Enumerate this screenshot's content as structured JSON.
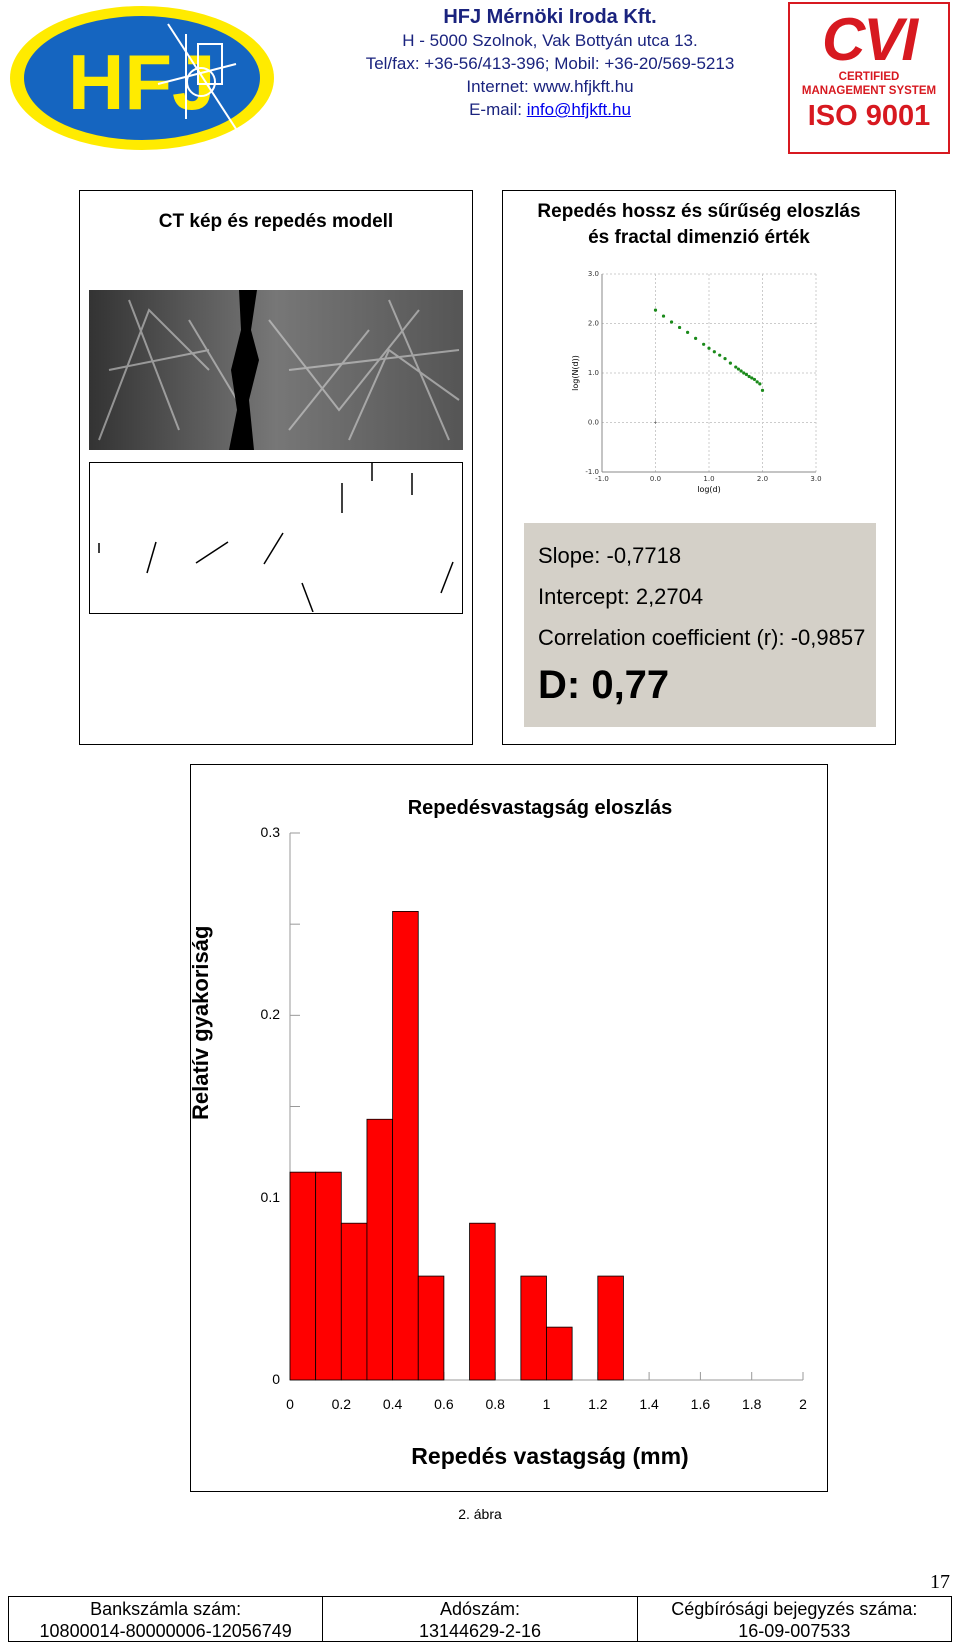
{
  "header": {
    "hfj_logo_text": "HFJ",
    "company_name": "HFJ Mérnöki Iroda Kft.",
    "address": "H - 5000 Szolnok, Vak Bottyán utca 13.",
    "phones": "Tel/fax: +36-56/413-396; Mobil: +36-20/569-5213",
    "internet": "Internet: www.hfjkft.hu",
    "email_label": "E-mail: ",
    "email": "info@hfjkft.hu",
    "cvi_logo": {
      "word": "CVI",
      "line1": "CERTIFIED",
      "line2": "MANAGEMENT SYSTEM",
      "iso": "ISO 9001"
    }
  },
  "left_panel": {
    "title": "CT kép és repedés modell"
  },
  "right_panel": {
    "title_line1": "Repedés hossz és sűrűség eloszlás",
    "title_line2": "és fractal dimenzió érték",
    "stats": {
      "slope": "Slope: -0,7718",
      "intercept": "Intercept: 2,2704",
      "correlation": "Correlation coefficient (r): -0,9857",
      "dimension": "D: 0,77"
    }
  },
  "chart_data": [
    {
      "type": "scatter",
      "xlabel": "log(d)",
      "ylabel": "log(N(d))",
      "xlim": [
        -1.0,
        3.0
      ],
      "ylim": [
        -1.0,
        3.0
      ],
      "x_ticks": [
        "-1.0",
        "0.0",
        "1.0",
        "2.0",
        "3.0"
      ],
      "y_ticks": [
        "3.0",
        "2.0",
        "1.0",
        "0.0",
        "-1.0"
      ],
      "grid": true,
      "point_color": "#1a8a1a",
      "x": [
        0.0,
        0.15,
        0.3,
        0.45,
        0.6,
        0.75,
        0.9,
        1.0,
        1.1,
        1.2,
        1.3,
        1.4,
        1.5,
        1.55,
        1.6,
        1.65,
        1.7,
        1.75,
        1.8,
        1.85,
        1.9,
        1.95,
        2.0
      ],
      "y": [
        2.27,
        2.15,
        2.03,
        1.92,
        1.82,
        1.7,
        1.58,
        1.5,
        1.43,
        1.36,
        1.29,
        1.2,
        1.12,
        1.08,
        1.04,
        1.0,
        0.97,
        0.93,
        0.9,
        0.87,
        0.82,
        0.78,
        0.65
      ]
    },
    {
      "type": "bar",
      "title": "Repedésvastagság eloszlás",
      "xlabel": "Repedés vastagság (mm)",
      "ylabel": "Relatív gyakoriság",
      "xlim": [
        0,
        2
      ],
      "ylim": [
        0,
        0.3
      ],
      "x_ticks": [
        "0",
        "0.2",
        "0.4",
        "0.6",
        "0.8",
        "1",
        "1.2",
        "1.4",
        "1.6",
        "1.8",
        "2"
      ],
      "y_ticks": [
        "0",
        "0.1",
        "0.2",
        "0.3"
      ],
      "bar_color": "#ff0000",
      "bins": [
        [
          0.0,
          0.1
        ],
        [
          0.1,
          0.2
        ],
        [
          0.2,
          0.3
        ],
        [
          0.3,
          0.4
        ],
        [
          0.4,
          0.5
        ],
        [
          0.5,
          0.6
        ],
        [
          0.6,
          0.7
        ],
        [
          0.7,
          0.8
        ],
        [
          0.8,
          0.9
        ],
        [
          0.9,
          1.0
        ],
        [
          1.0,
          1.1
        ],
        [
          1.1,
          1.2
        ],
        [
          1.2,
          1.3
        ]
      ],
      "values": [
        0.114,
        0.114,
        0.086,
        0.143,
        0.257,
        0.057,
        0.0,
        0.086,
        0.0,
        0.057,
        0.029,
        0.0,
        0.057
      ]
    }
  ],
  "caption": "2. ábra",
  "page_number": "17",
  "footer": [
    {
      "label": "Bankszámla szám:",
      "value": "10800014-80000006-12056749"
    },
    {
      "label": "Adószám:",
      "value": "13144629-2-16"
    },
    {
      "label": "Cégbírósági bejegyzés száma:",
      "value": "16-09-007533"
    }
  ]
}
